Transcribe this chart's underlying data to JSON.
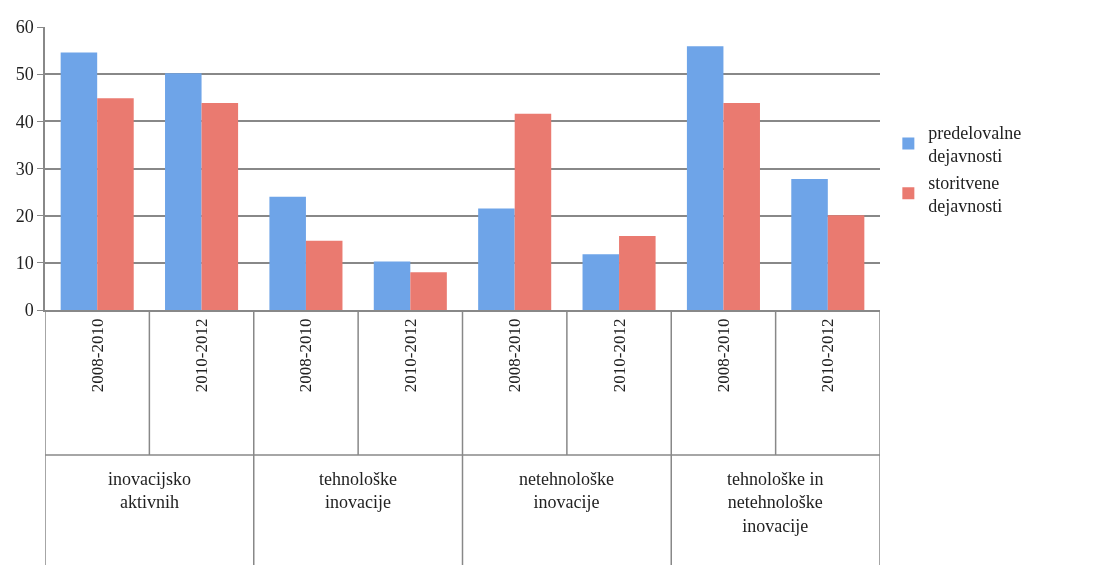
{
  "chart_data": {
    "type": "bar",
    "categories": [
      "2008-2010",
      "2010-2012",
      "2008-2010",
      "2010-2012",
      "2008-2010",
      "2010-2012",
      "2008-2010",
      "2010-2012"
    ],
    "series": [
      {
        "name": "predelovalne dejavnosti",
        "color": "#6ea4e8",
        "values": [
          54.6,
          50.2,
          24.0,
          10.3,
          21.5,
          11.8,
          55.9,
          27.8
        ]
      },
      {
        "name": "storitvene dejavnosti",
        "color": "#ea7a70",
        "values": [
          44.9,
          43.9,
          14.7,
          8.0,
          41.6,
          15.7,
          43.9,
          20.1
        ]
      }
    ],
    "annotations": [
      "inovacijsko aktivnih",
      "tehnološke inovacije",
      "netehnološke inovacije",
      "tehnološke in netehnološke inovacije"
    ],
    "ylim": [
      0,
      60
    ],
    "yticks": [
      0,
      10,
      20,
      30,
      40,
      50,
      60
    ],
    "grid": "y",
    "legend": "right"
  }
}
